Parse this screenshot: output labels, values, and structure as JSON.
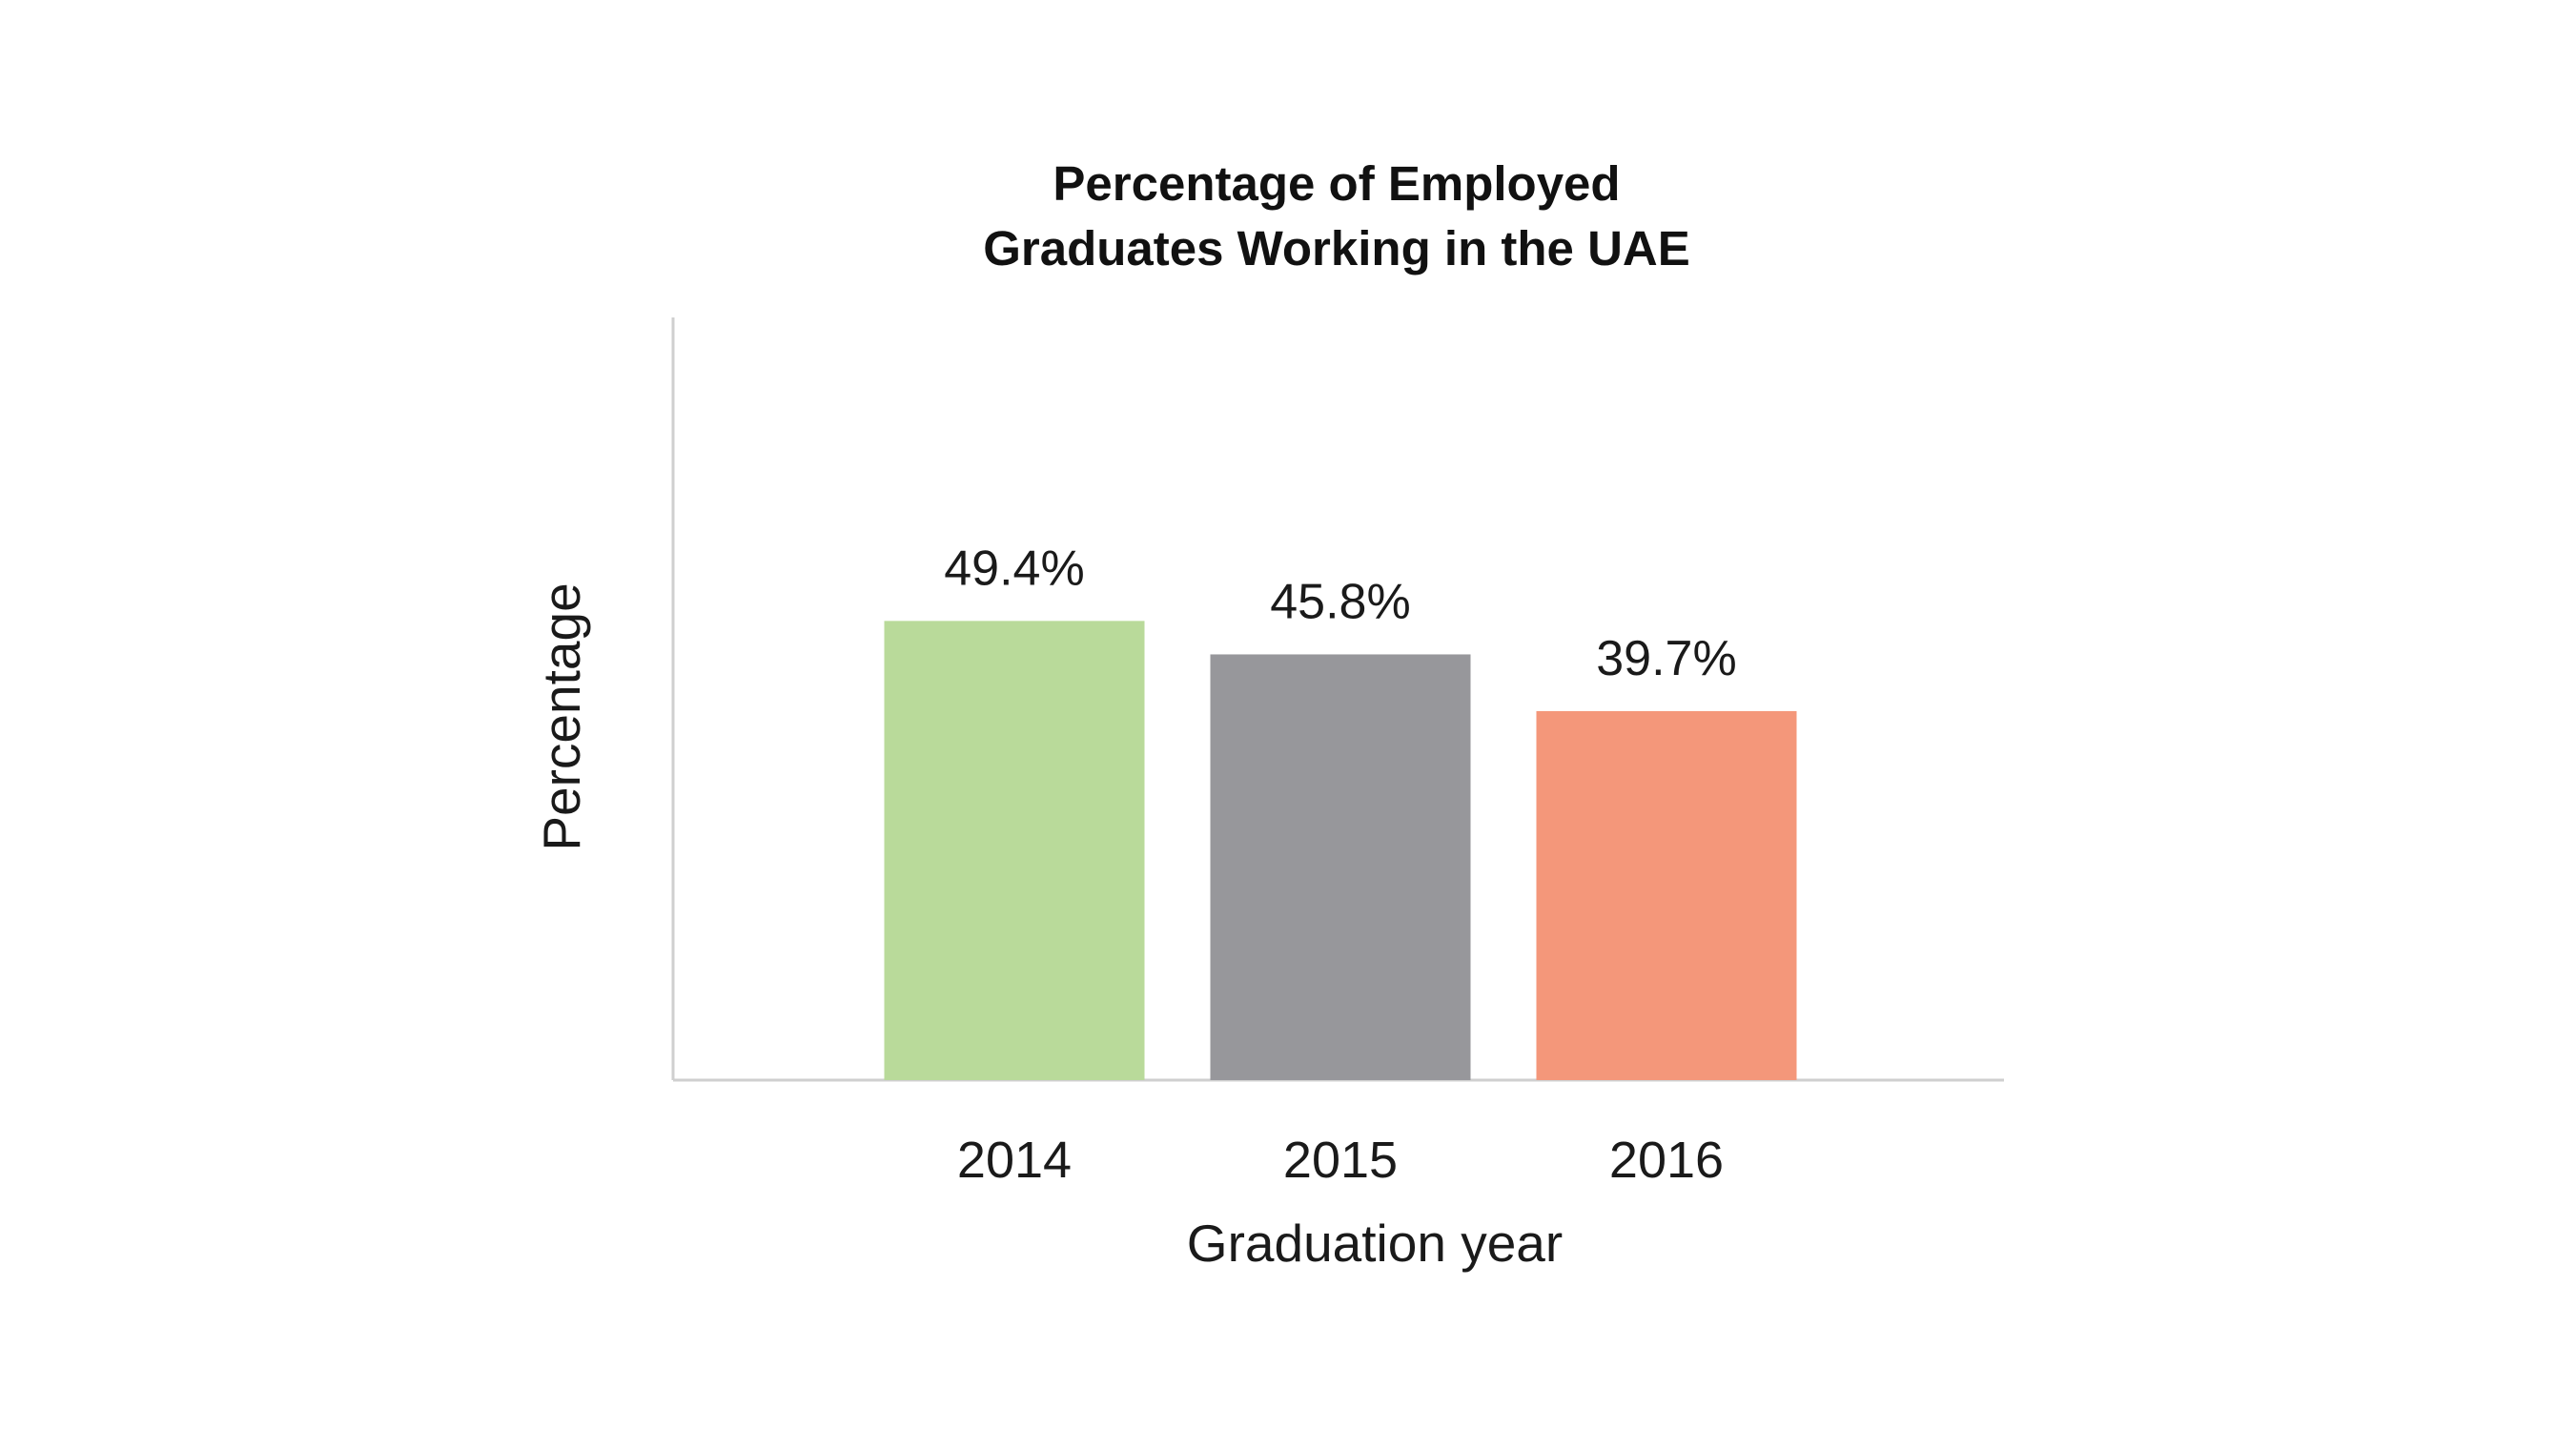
{
  "chart_data": {
    "type": "bar",
    "title_lines": [
      "Percentage of Employed",
      "Graduates Working in the UAE"
    ],
    "xlabel": "Graduation year",
    "ylabel": "Percentage",
    "categories": [
      "2014",
      "2015",
      "2016"
    ],
    "values": [
      49.4,
      45.8,
      39.7
    ],
    "value_labels": [
      "49.4%",
      "45.8%",
      "39.7%"
    ],
    "colors": [
      "#b9da9a",
      "#97979b",
      "#f4977a"
    ],
    "ylim": [
      0,
      82
    ],
    "grid": false,
    "legend": "none"
  }
}
